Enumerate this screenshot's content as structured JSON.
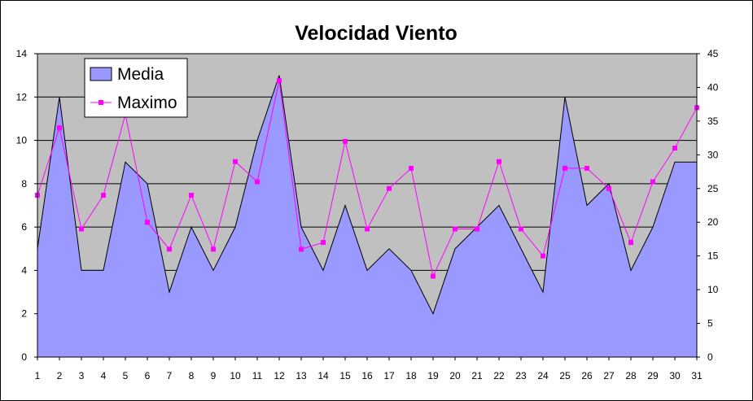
{
  "chart_data": {
    "type": "area",
    "title": "Velocidad Viento",
    "x": [
      1,
      2,
      3,
      4,
      5,
      6,
      7,
      8,
      9,
      10,
      11,
      12,
      13,
      14,
      15,
      16,
      17,
      18,
      19,
      20,
      21,
      22,
      23,
      24,
      25,
      26,
      27,
      28,
      29,
      30,
      31
    ],
    "series": [
      {
        "name": "Media",
        "type": "area",
        "axis": "left",
        "color": "#9999FF",
        "values": [
          5,
          12,
          4,
          4,
          9,
          8,
          3,
          6,
          4,
          6,
          10,
          13,
          6,
          4,
          7,
          4,
          5,
          4,
          2,
          5,
          6,
          7,
          5,
          3,
          12,
          7,
          8,
          4,
          6,
          9,
          9
        ]
      },
      {
        "name": "Maximo",
        "type": "line",
        "axis": "right",
        "color": "#FF00FF",
        "values": [
          24,
          34,
          19,
          24,
          36,
          20,
          16,
          24,
          16,
          29,
          26,
          41,
          16,
          17,
          32,
          19,
          25,
          28,
          12,
          19,
          19,
          29,
          19,
          15,
          28,
          28,
          25,
          17,
          26,
          31,
          37
        ]
      }
    ],
    "y_left": {
      "min": 0,
      "max": 14,
      "ticks": [
        0,
        2,
        4,
        6,
        8,
        10,
        12,
        14
      ]
    },
    "y_right": {
      "min": 0,
      "max": 45,
      "ticks": [
        0,
        5,
        10,
        15,
        20,
        25,
        30,
        35,
        40,
        45
      ]
    },
    "grid": true,
    "plot_background": "#C0C0C0",
    "legend_position": "top-left"
  }
}
